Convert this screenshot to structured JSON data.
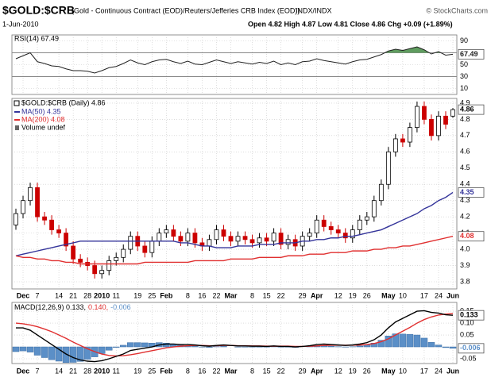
{
  "header": {
    "title": "$GOLD:$CRB",
    "subtitle": "(Gold - Continuous Contract (EOD)/Reuters/Jefferies CRB Index (EOD))",
    "exchange": "INDX/INDX",
    "credit": "© StockCharts.com",
    "date": "1-Jun-2010",
    "quote": "Open 4.82 High 4.87 Low 4.81 Close 4.86 Chg +0.09 (+1.89%)"
  },
  "chart_data": [
    {
      "type": "line",
      "ylim": [
        0,
        100
      ],
      "yticks": [
        10,
        30,
        50,
        70,
        90
      ],
      "grid": true,
      "overbought": 70,
      "oversold": 30,
      "fill_color": "#5f9c5f",
      "series": [
        {
          "name": "RSI(14) 67.49",
          "color": "#222222",
          "tag": true,
          "values": [
            60,
            65,
            70,
            55,
            52,
            48,
            47,
            43,
            40,
            40,
            39,
            36,
            40,
            45,
            47,
            52,
            58,
            53,
            50,
            55,
            58,
            59,
            55,
            52,
            56,
            51,
            50,
            54,
            58,
            55,
            52,
            55,
            53,
            51,
            54,
            52,
            56,
            50,
            53,
            50,
            55,
            56,
            60,
            57,
            55,
            53,
            51,
            55,
            58,
            59,
            63,
            67,
            73,
            76,
            74,
            77,
            80,
            75,
            68,
            72,
            66,
            67.49
          ]
        }
      ]
    },
    {
      "type": "candlestick",
      "ylim": [
        3.756,
        4.929
      ],
      "yticks": [
        3.8,
        3.9,
        {
          "value": 4,
          "label": "4.0"
        },
        4.1,
        4.2,
        4.3,
        4.4,
        4.5,
        4.6,
        4.7,
        4.8,
        4.9
      ],
      "grid": true,
      "legend": "$GOLD:$CRB (Daily) 4.86",
      "volume_legend": "Volume undef",
      "up_color": "#000000",
      "down_color": "#cc0000",
      "categories": [
        null,
        "Dec",
        null,
        "7",
        null,
        null,
        "14",
        null,
        "21",
        null,
        "28",
        null,
        "2010",
        null,
        "11",
        null,
        null,
        "19",
        null,
        "25",
        null,
        "Feb",
        null,
        null,
        "8",
        null,
        "16",
        null,
        "22",
        null,
        "Mar",
        null,
        null,
        "8",
        null,
        "15",
        null,
        "22",
        null,
        null,
        "29",
        null,
        "Apr",
        null,
        null,
        "12",
        null,
        "19",
        null,
        "26",
        null,
        null,
        "May",
        null,
        "10",
        null,
        null,
        "17",
        null,
        "24",
        null,
        "Jun"
      ],
      "open": [
        4.15,
        4.22,
        4.3,
        4.38,
        4.2,
        4.18,
        4.12,
        4.1,
        4.02,
        3.94,
        3.92,
        3.9,
        3.85,
        3.87,
        3.93,
        3.95,
        4.0,
        4.08,
        4.02,
        3.98,
        4.05,
        4.1,
        4.12,
        4.08,
        4.05,
        4.1,
        4.04,
        4.02,
        4.06,
        4.12,
        4.08,
        4.05,
        4.08,
        4.06,
        4.04,
        4.07,
        4.05,
        4.1,
        4.03,
        4.06,
        4.02,
        4.08,
        4.1,
        4.18,
        4.14,
        4.12,
        4.1,
        4.07,
        4.12,
        4.18,
        4.2,
        4.3,
        4.4,
        4.6,
        4.68,
        4.66,
        4.75,
        4.88,
        4.8,
        4.7,
        4.82,
        4.82
      ],
      "high": [
        4.25,
        4.33,
        4.41,
        4.41,
        4.23,
        4.21,
        4.15,
        4.13,
        4.05,
        3.97,
        3.95,
        3.93,
        3.9,
        3.96,
        3.98,
        4.03,
        4.11,
        4.11,
        4.05,
        4.08,
        4.13,
        4.15,
        4.15,
        4.11,
        4.13,
        4.13,
        4.07,
        4.09,
        4.15,
        4.15,
        4.11,
        4.11,
        4.11,
        4.09,
        4.1,
        4.1,
        4.13,
        4.13,
        4.09,
        4.09,
        4.11,
        4.13,
        4.21,
        4.21,
        4.17,
        4.15,
        4.13,
        4.15,
        4.21,
        4.23,
        4.33,
        4.43,
        4.63,
        4.71,
        4.71,
        4.78,
        4.91,
        4.91,
        4.83,
        4.85,
        4.85,
        4.87
      ],
      "low": [
        4.12,
        4.19,
        4.27,
        4.17,
        4.15,
        4.09,
        4.07,
        3.99,
        3.91,
        3.89,
        3.87,
        3.82,
        3.82,
        3.84,
        3.9,
        3.92,
        3.97,
        3.99,
        3.95,
        3.95,
        4.02,
        4.07,
        4.05,
        4.02,
        4.02,
        4.01,
        3.99,
        3.99,
        4.03,
        4.05,
        4.02,
        4.02,
        4.03,
        4.01,
        4.01,
        4.02,
        4.02,
        4.0,
        4.0,
        3.99,
        3.99,
        4.05,
        4.07,
        4.11,
        4.09,
        4.07,
        4.04,
        4.04,
        4.09,
        4.15,
        4.17,
        4.27,
        4.37,
        4.57,
        4.63,
        4.63,
        4.72,
        4.77,
        4.67,
        4.67,
        4.74,
        4.81
      ],
      "close": [
        4.22,
        4.3,
        4.38,
        4.2,
        4.18,
        4.12,
        4.1,
        4.02,
        3.94,
        3.92,
        3.9,
        3.85,
        3.87,
        3.93,
        3.95,
        4.0,
        4.08,
        4.02,
        3.98,
        4.05,
        4.1,
        4.12,
        4.08,
        4.05,
        4.1,
        4.04,
        4.02,
        4.06,
        4.12,
        4.08,
        4.05,
        4.08,
        4.06,
        4.04,
        4.07,
        4.05,
        4.1,
        4.03,
        4.06,
        4.02,
        4.08,
        4.1,
        4.18,
        4.14,
        4.12,
        4.1,
        4.07,
        4.12,
        4.18,
        4.2,
        4.3,
        4.4,
        4.6,
        4.68,
        4.66,
        4.75,
        4.88,
        4.8,
        4.7,
        4.82,
        4.77,
        4.86
      ],
      "series": [
        {
          "name": "MA(50) 4.35",
          "color": "#34349a",
          "tag": true,
          "values": [
            3.96,
            3.97,
            3.98,
            3.99,
            4.0,
            4.01,
            4.02,
            4.03,
            4.04,
            4.05,
            4.05,
            4.05,
            4.05,
            4.05,
            4.05,
            4.05,
            4.05,
            4.05,
            4.05,
            4.05,
            4.05,
            4.05,
            4.05,
            4.04,
            4.04,
            4.03,
            4.02,
            4.02,
            4.01,
            4.01,
            4.01,
            4.02,
            4.02,
            4.02,
            4.03,
            4.03,
            4.03,
            4.04,
            4.04,
            4.04,
            4.05,
            4.05,
            4.06,
            4.06,
            4.07,
            4.07,
            4.08,
            4.08,
            4.09,
            4.1,
            4.11,
            4.12,
            4.14,
            4.16,
            4.18,
            4.2,
            4.22,
            4.25,
            4.27,
            4.3,
            4.32,
            4.35
          ]
        },
        {
          "name": "MA(200) 4.08",
          "color": "#e03030",
          "tag": true,
          "values": [
            3.96,
            3.95,
            3.95,
            3.94,
            3.94,
            3.93,
            3.93,
            3.92,
            3.92,
            3.91,
            3.91,
            3.91,
            3.91,
            3.91,
            3.91,
            3.91,
            3.91,
            3.91,
            3.92,
            3.92,
            3.92,
            3.92,
            3.92,
            3.92,
            3.92,
            3.93,
            3.93,
            3.93,
            3.93,
            3.93,
            3.94,
            3.94,
            3.94,
            3.94,
            3.95,
            3.95,
            3.95,
            3.95,
            3.96,
            3.96,
            3.96,
            3.97,
            3.97,
            3.97,
            3.98,
            3.98,
            3.98,
            3.99,
            3.99,
            3.99,
            4.0,
            4.0,
            4.01,
            4.01,
            4.02,
            4.02,
            4.03,
            4.04,
            4.05,
            4.06,
            4.07,
            4.08
          ]
        }
      ]
    },
    {
      "type": "line",
      "ylim": [
        -0.07,
        0.187
      ],
      "yticks": [
        0.15,
        {
          "value": 0.1,
          "label": "0.10"
        },
        {
          "value": 0.05,
          "label": "0.05"
        },
        {
          "value": -0.05,
          "label": "-0.05"
        }
      ],
      "grid": true,
      "legend": [
        "MACD(12,26,9) 0.133,",
        "0.140,",
        "-0.006"
      ],
      "series": [
        {
          "type": "bar",
          "color": "#5b8fc7",
          "tag": true,
          "values": [
            -0.02,
            -0.017,
            -0.022,
            -0.035,
            -0.045,
            -0.054,
            -0.06,
            -0.066,
            -0.065,
            -0.061,
            -0.052,
            -0.042,
            -0.028,
            -0.014,
            -0.002,
            0.007,
            0.018,
            0.018,
            0.017,
            0.016,
            0.018,
            0.016,
            0.012,
            0.007,
            0.005,
            0.002,
            -0.001,
            -0.002,
            0.001,
            0.002,
            0.0,
            -0.001,
            -0.001,
            -0.001,
            -0.001,
            -0.001,
            0.001,
            -0.001,
            -0.001,
            -0.002,
            0.0,
            0.002,
            0.006,
            0.006,
            0.003,
            0.001,
            -0.001,
            0.001,
            0.004,
            0.008,
            0.016,
            0.028,
            0.046,
            0.055,
            0.054,
            0.053,
            0.05,
            0.037,
            0.019,
            0.008,
            -0.003,
            -0.006
          ]
        },
        {
          "color": "#e03030",
          "values": [
            0.1,
            0.097,
            0.092,
            0.085,
            0.075,
            0.064,
            0.05,
            0.036,
            0.02,
            0.006,
            -0.008,
            -0.02,
            -0.03,
            -0.036,
            -0.038,
            -0.037,
            -0.033,
            -0.028,
            -0.022,
            -0.016,
            -0.01,
            -0.004,
            0.0,
            0.003,
            0.005,
            0.006,
            0.006,
            0.005,
            0.005,
            0.006,
            0.006,
            0.005,
            0.005,
            0.004,
            0.004,
            0.003,
            0.003,
            0.003,
            0.003,
            0.002,
            0.002,
            0.003,
            0.004,
            0.006,
            0.007,
            0.007,
            0.007,
            0.007,
            0.008,
            0.01,
            0.014,
            0.022,
            0.034,
            0.05,
            0.066,
            0.082,
            0.1,
            0.115,
            0.126,
            0.134,
            0.138,
            0.14
          ]
        },
        {
          "color": "#000000",
          "tag": true,
          "values": [
            0.08,
            0.08,
            0.07,
            0.05,
            0.03,
            0.01,
            -0.01,
            -0.03,
            -0.045,
            -0.055,
            -0.06,
            -0.062,
            -0.058,
            -0.05,
            -0.04,
            -0.03,
            -0.015,
            -0.01,
            -0.005,
            0.0,
            0.008,
            0.012,
            0.012,
            0.01,
            0.01,
            0.008,
            0.005,
            0.003,
            0.006,
            0.008,
            0.006,
            0.004,
            0.004,
            0.003,
            0.003,
            0.002,
            0.004,
            0.002,
            0.002,
            0.0,
            0.002,
            0.005,
            0.01,
            0.012,
            0.01,
            0.008,
            0.006,
            0.008,
            0.012,
            0.018,
            0.03,
            0.05,
            0.08,
            0.105,
            0.12,
            0.135,
            0.15,
            0.152,
            0.145,
            0.142,
            0.135,
            0.133
          ]
        }
      ]
    }
  ]
}
